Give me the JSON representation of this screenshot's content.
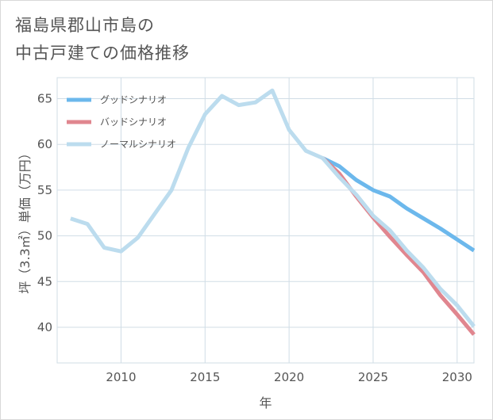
{
  "title_lines": [
    "福島県郡山市島の",
    "中古戸建ての価格推移"
  ],
  "chart_data": {
    "type": "line",
    "title": "福島県郡山市島の中古戸建ての価格推移",
    "xlabel": "年",
    "ylabel": "坪（3.3㎡）単価（万円）",
    "xlim": [
      2006.2,
      2031
    ],
    "ylim": [
      36.1,
      67.3
    ],
    "xticks": [
      2010,
      2015,
      2020,
      2025,
      2030
    ],
    "yticks": [
      40,
      45,
      50,
      55,
      60,
      65
    ],
    "grid": true,
    "legend_position": "top-left",
    "series": [
      {
        "name": "グッドシナリオ",
        "color": "#6cb8ec",
        "x": [
          2022,
          2023,
          2024,
          2025,
          2026,
          2027,
          2028,
          2029,
          2030,
          2031
        ],
        "values": [
          58.5,
          57.6,
          56.1,
          55.0,
          54.3,
          53.0,
          51.9,
          50.8,
          49.6,
          48.4
        ]
      },
      {
        "name": "バッドシナリオ",
        "color": "#e0868f",
        "x": [
          2022,
          2023,
          2024,
          2025,
          2026,
          2027,
          2028,
          2029,
          2030,
          2031
        ],
        "values": [
          58.5,
          56.8,
          54.3,
          52.0,
          49.9,
          47.9,
          46.0,
          43.5,
          41.4,
          39.2
        ]
      },
      {
        "name": "ノーマルシナリオ",
        "color": "#bcdcee",
        "x": [
          2007,
          2008,
          2009,
          2010,
          2011,
          2012,
          2013,
          2014,
          2015,
          2016,
          2017,
          2018,
          2019,
          2020,
          2021,
          2022,
          2023,
          2024,
          2025,
          2026,
          2027,
          2028,
          2029,
          2030,
          2031
        ],
        "values": [
          51.9,
          51.3,
          48.7,
          48.3,
          49.8,
          52.4,
          55.0,
          59.6,
          63.3,
          65.3,
          64.3,
          64.6,
          65.9,
          61.6,
          59.3,
          58.5,
          56.4,
          54.5,
          52.2,
          50.6,
          48.4,
          46.5,
          44.2,
          42.4,
          40.1
        ]
      }
    ]
  }
}
